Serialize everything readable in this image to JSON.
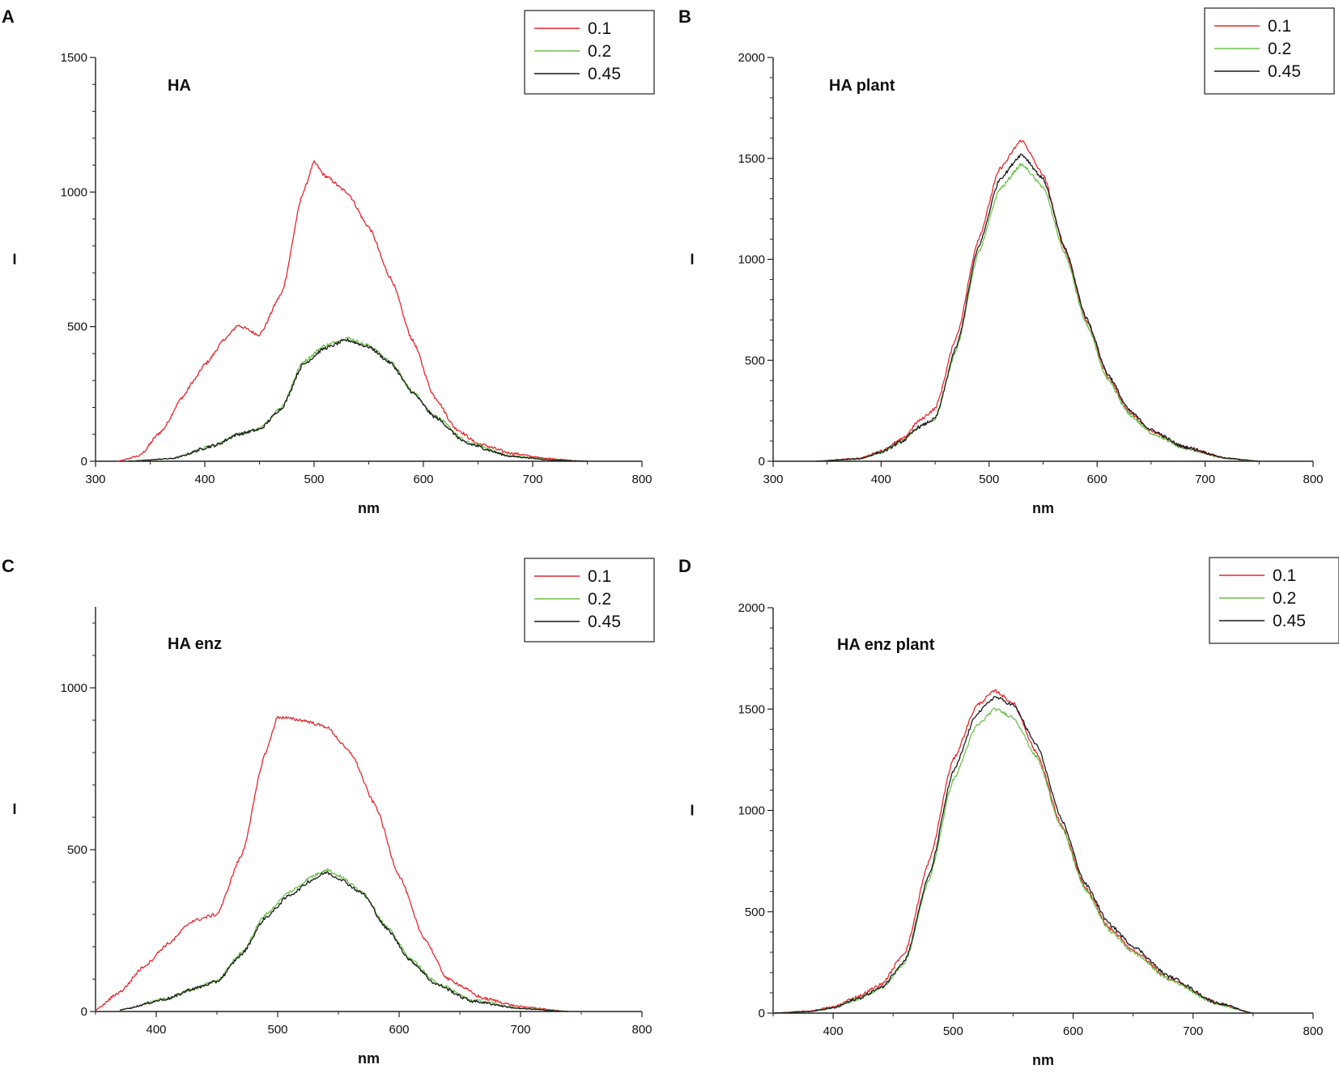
{
  "figure": {
    "background": "#ffffff"
  },
  "series_colors": {
    "0.1": "#e8262c",
    "0.2": "#6cc04a",
    "0.45": "#1a1a1a"
  },
  "chart_data": [
    {
      "panel": "A",
      "type": "line",
      "title": "HA",
      "xlabel": "nm",
      "ylabel": "I",
      "xlim": [
        300,
        800
      ],
      "ylim": [
        0,
        1500
      ],
      "xticks": [
        300,
        400,
        500,
        600,
        700,
        800
      ],
      "yticks": [
        0,
        500,
        1000,
        1500
      ],
      "legend": [
        "0.1",
        "0.2",
        "0.45"
      ],
      "legend_position": "top-right",
      "series": [
        {
          "name": "0.1",
          "color": "#e8262c",
          "x": [
            320,
            340,
            360,
            380,
            390,
            400,
            420,
            430,
            450,
            470,
            490,
            500,
            510,
            530,
            550,
            570,
            590,
            610,
            630,
            650,
            680,
            710,
            740,
            750
          ],
          "y": [
            0,
            20,
            110,
            240,
            300,
            360,
            460,
            505,
            470,
            620,
            1000,
            1110,
            1060,
            1000,
            870,
            680,
            450,
            240,
            120,
            65,
            30,
            12,
            2,
            0
          ]
        },
        {
          "name": "0.2",
          "color": "#6cc04a",
          "x": [
            330,
            370,
            410,
            430,
            450,
            470,
            490,
            510,
            530,
            550,
            570,
            590,
            610,
            640,
            680,
            720,
            750
          ],
          "y": [
            0,
            10,
            60,
            100,
            120,
            200,
            370,
            430,
            458,
            430,
            370,
            260,
            170,
            70,
            20,
            5,
            0
          ]
        },
        {
          "name": "0.45",
          "color": "#1a1a1a",
          "x": [
            330,
            370,
            410,
            430,
            450,
            470,
            490,
            510,
            530,
            550,
            570,
            590,
            610,
            640,
            680,
            720,
            750
          ],
          "y": [
            0,
            10,
            60,
            100,
            118,
            195,
            360,
            420,
            450,
            425,
            365,
            255,
            165,
            65,
            18,
            4,
            0
          ]
        }
      ]
    },
    {
      "panel": "B",
      "type": "line",
      "title": "HA plant",
      "xlabel": "nm",
      "ylabel": "I",
      "xlim": [
        300,
        800
      ],
      "ylim": [
        0,
        2000
      ],
      "xticks": [
        300,
        400,
        500,
        600,
        700,
        800
      ],
      "yticks": [
        0,
        500,
        1000,
        1500,
        2000
      ],
      "legend": [
        "0.1",
        "0.2",
        "0.45"
      ],
      "legend_position": "top-right",
      "series": [
        {
          "name": "0.1",
          "color": "#e8262c",
          "x": [
            340,
            380,
            400,
            420,
            435,
            450,
            470,
            490,
            510,
            530,
            550,
            570,
            590,
            610,
            630,
            650,
            680,
            720,
            750
          ],
          "y": [
            0,
            15,
            50,
            110,
            200,
            260,
            620,
            1100,
            1450,
            1590,
            1420,
            1050,
            700,
            420,
            240,
            150,
            70,
            15,
            0
          ]
        },
        {
          "name": "0.2",
          "color": "#6cc04a",
          "x": [
            340,
            380,
            400,
            420,
            435,
            450,
            470,
            490,
            510,
            530,
            550,
            570,
            590,
            610,
            630,
            650,
            680,
            720,
            750
          ],
          "y": [
            0,
            12,
            45,
            100,
            170,
            210,
            560,
            1030,
            1350,
            1470,
            1360,
            1030,
            680,
            400,
            230,
            140,
            65,
            12,
            0
          ]
        },
        {
          "name": "0.45",
          "color": "#1a1a1a",
          "x": [
            340,
            380,
            400,
            420,
            435,
            450,
            470,
            490,
            510,
            530,
            550,
            570,
            590,
            610,
            630,
            650,
            680,
            720,
            750
          ],
          "y": [
            0,
            12,
            45,
            100,
            170,
            210,
            570,
            1060,
            1400,
            1520,
            1400,
            1060,
            710,
            430,
            250,
            155,
            72,
            15,
            0
          ]
        }
      ]
    },
    {
      "panel": "C",
      "type": "line",
      "title": "HA enz",
      "xlabel": "nm",
      "ylabel": "I",
      "xlim": [
        350,
        800
      ],
      "ylim": [
        0,
        1250
      ],
      "xticks": [
        400,
        500,
        600,
        700,
        800
      ],
      "yticks": [
        0,
        500,
        1000
      ],
      "legend": [
        "0.1",
        "0.2",
        "0.45"
      ],
      "legend_position": "top-right",
      "series": [
        {
          "name": "0.1",
          "color": "#e8262c",
          "x": [
            350,
            370,
            390,
            410,
            430,
            450,
            470,
            490,
            500,
            520,
            540,
            560,
            580,
            600,
            620,
            640,
            670,
            700,
            740
          ],
          "y": [
            5,
            60,
            140,
            210,
            280,
            300,
            480,
            800,
            910,
            900,
            880,
            800,
            640,
            420,
            230,
            100,
            40,
            15,
            0
          ]
        },
        {
          "name": "0.2",
          "color": "#6cc04a",
          "x": [
            370,
            410,
            430,
            450,
            470,
            490,
            510,
            530,
            540,
            550,
            570,
            590,
            610,
            630,
            660,
            700,
            740
          ],
          "y": [
            5,
            40,
            70,
            95,
            180,
            300,
            370,
            420,
            440,
            420,
            370,
            260,
            160,
            90,
            35,
            10,
            0
          ]
        },
        {
          "name": "0.45",
          "color": "#1a1a1a",
          "x": [
            370,
            410,
            430,
            450,
            470,
            490,
            510,
            530,
            540,
            550,
            570,
            590,
            610,
            630,
            660,
            700,
            740
          ],
          "y": [
            5,
            40,
            70,
            92,
            175,
            290,
            360,
            410,
            430,
            412,
            365,
            255,
            155,
            85,
            32,
            9,
            0
          ]
        }
      ]
    },
    {
      "panel": "D",
      "type": "line",
      "title": "HA enz plant",
      "xlabel": "nm",
      "ylabel": "I",
      "xlim": [
        350,
        800
      ],
      "ylim": [
        0,
        2000
      ],
      "xticks": [
        400,
        500,
        600,
        700,
        800
      ],
      "yticks": [
        0,
        500,
        1000,
        1500,
        2000
      ],
      "legend": [
        "0.1",
        "0.2",
        "0.45"
      ],
      "legend_position": "top-right",
      "series": [
        {
          "name": "0.1",
          "color": "#e8262c",
          "x": [
            350,
            380,
            400,
            420,
            440,
            460,
            480,
            500,
            520,
            535,
            550,
            570,
            590,
            610,
            630,
            650,
            680,
            720,
            750
          ],
          "y": [
            0,
            10,
            30,
            80,
            140,
            300,
            750,
            1250,
            1520,
            1590,
            1530,
            1280,
            930,
            620,
            420,
            310,
            170,
            50,
            0
          ]
        },
        {
          "name": "0.2",
          "color": "#6cc04a",
          "x": [
            350,
            380,
            400,
            420,
            440,
            460,
            480,
            500,
            520,
            535,
            550,
            570,
            590,
            610,
            630,
            650,
            680,
            720,
            750
          ],
          "y": [
            0,
            8,
            25,
            70,
            120,
            250,
            660,
            1150,
            1420,
            1500,
            1460,
            1260,
            920,
            610,
            410,
            300,
            165,
            45,
            0
          ]
        },
        {
          "name": "0.45",
          "color": "#1a1a1a",
          "x": [
            350,
            380,
            400,
            420,
            440,
            460,
            480,
            500,
            520,
            535,
            550,
            570,
            590,
            610,
            630,
            650,
            680,
            720,
            750
          ],
          "y": [
            0,
            8,
            25,
            70,
            125,
            260,
            680,
            1190,
            1480,
            1560,
            1520,
            1320,
            960,
            640,
            440,
            330,
            180,
            50,
            0
          ]
        }
      ]
    }
  ]
}
